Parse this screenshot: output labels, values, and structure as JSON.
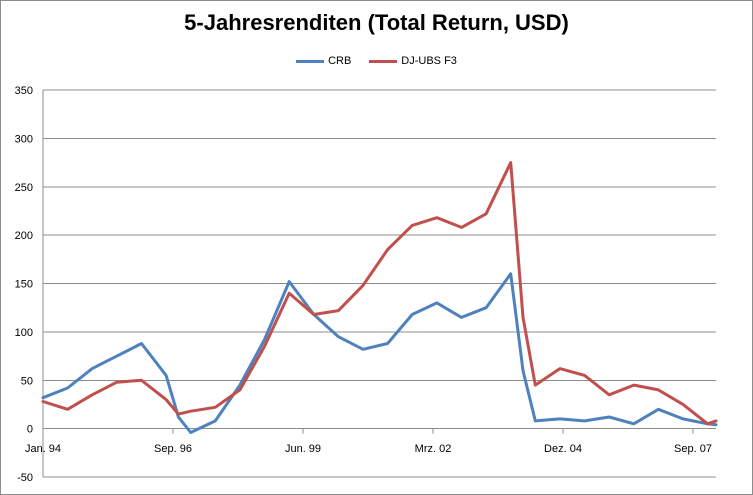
{
  "chart_data": {
    "type": "line",
    "title": "5-Jahresrenditen (Total Return, USD)",
    "xlabel": "",
    "ylabel": "",
    "ylim": [
      -50,
      350
    ],
    "yticks": [
      -50,
      0,
      50,
      100,
      150,
      200,
      250,
      300,
      350
    ],
    "grid": "horizontal",
    "legend_position": "top-center",
    "x_tick_labels": [
      "Jan. 94",
      "Sep. 96",
      "Jun. 99",
      "Mrz. 02",
      "Dez. 04",
      "Sep. 07"
    ],
    "x": [
      1994.0,
      1994.5,
      1995.0,
      1995.5,
      1996.0,
      1996.5,
      1996.75,
      1997.0,
      1997.5,
      1998.0,
      1998.5,
      1999.0,
      1999.5,
      2000.0,
      2000.5,
      2001.0,
      2001.5,
      2002.0,
      2002.5,
      2003.0,
      2003.5,
      2003.75,
      2004.0,
      2004.5,
      2005.0,
      2005.5,
      2006.0,
      2006.5,
      2007.0,
      2007.5,
      2007.67
    ],
    "series": [
      {
        "name": "CRB",
        "color": "#4f81bd",
        "values": [
          32,
          42,
          62,
          75,
          88,
          55,
          12,
          -4,
          8,
          45,
          92,
          152,
          118,
          95,
          82,
          88,
          118,
          130,
          115,
          125,
          160,
          60,
          8,
          10,
          8,
          12,
          5,
          20,
          10,
          5,
          4
        ]
      },
      {
        "name": "DJ-UBS F3",
        "color": "#c0504d",
        "values": [
          28,
          20,
          35,
          48,
          50,
          30,
          15,
          18,
          22,
          40,
          85,
          140,
          118,
          122,
          148,
          185,
          210,
          218,
          208,
          222,
          275,
          115,
          45,
          62,
          55,
          35,
          45,
          40,
          25,
          5,
          8
        ]
      }
    ]
  }
}
